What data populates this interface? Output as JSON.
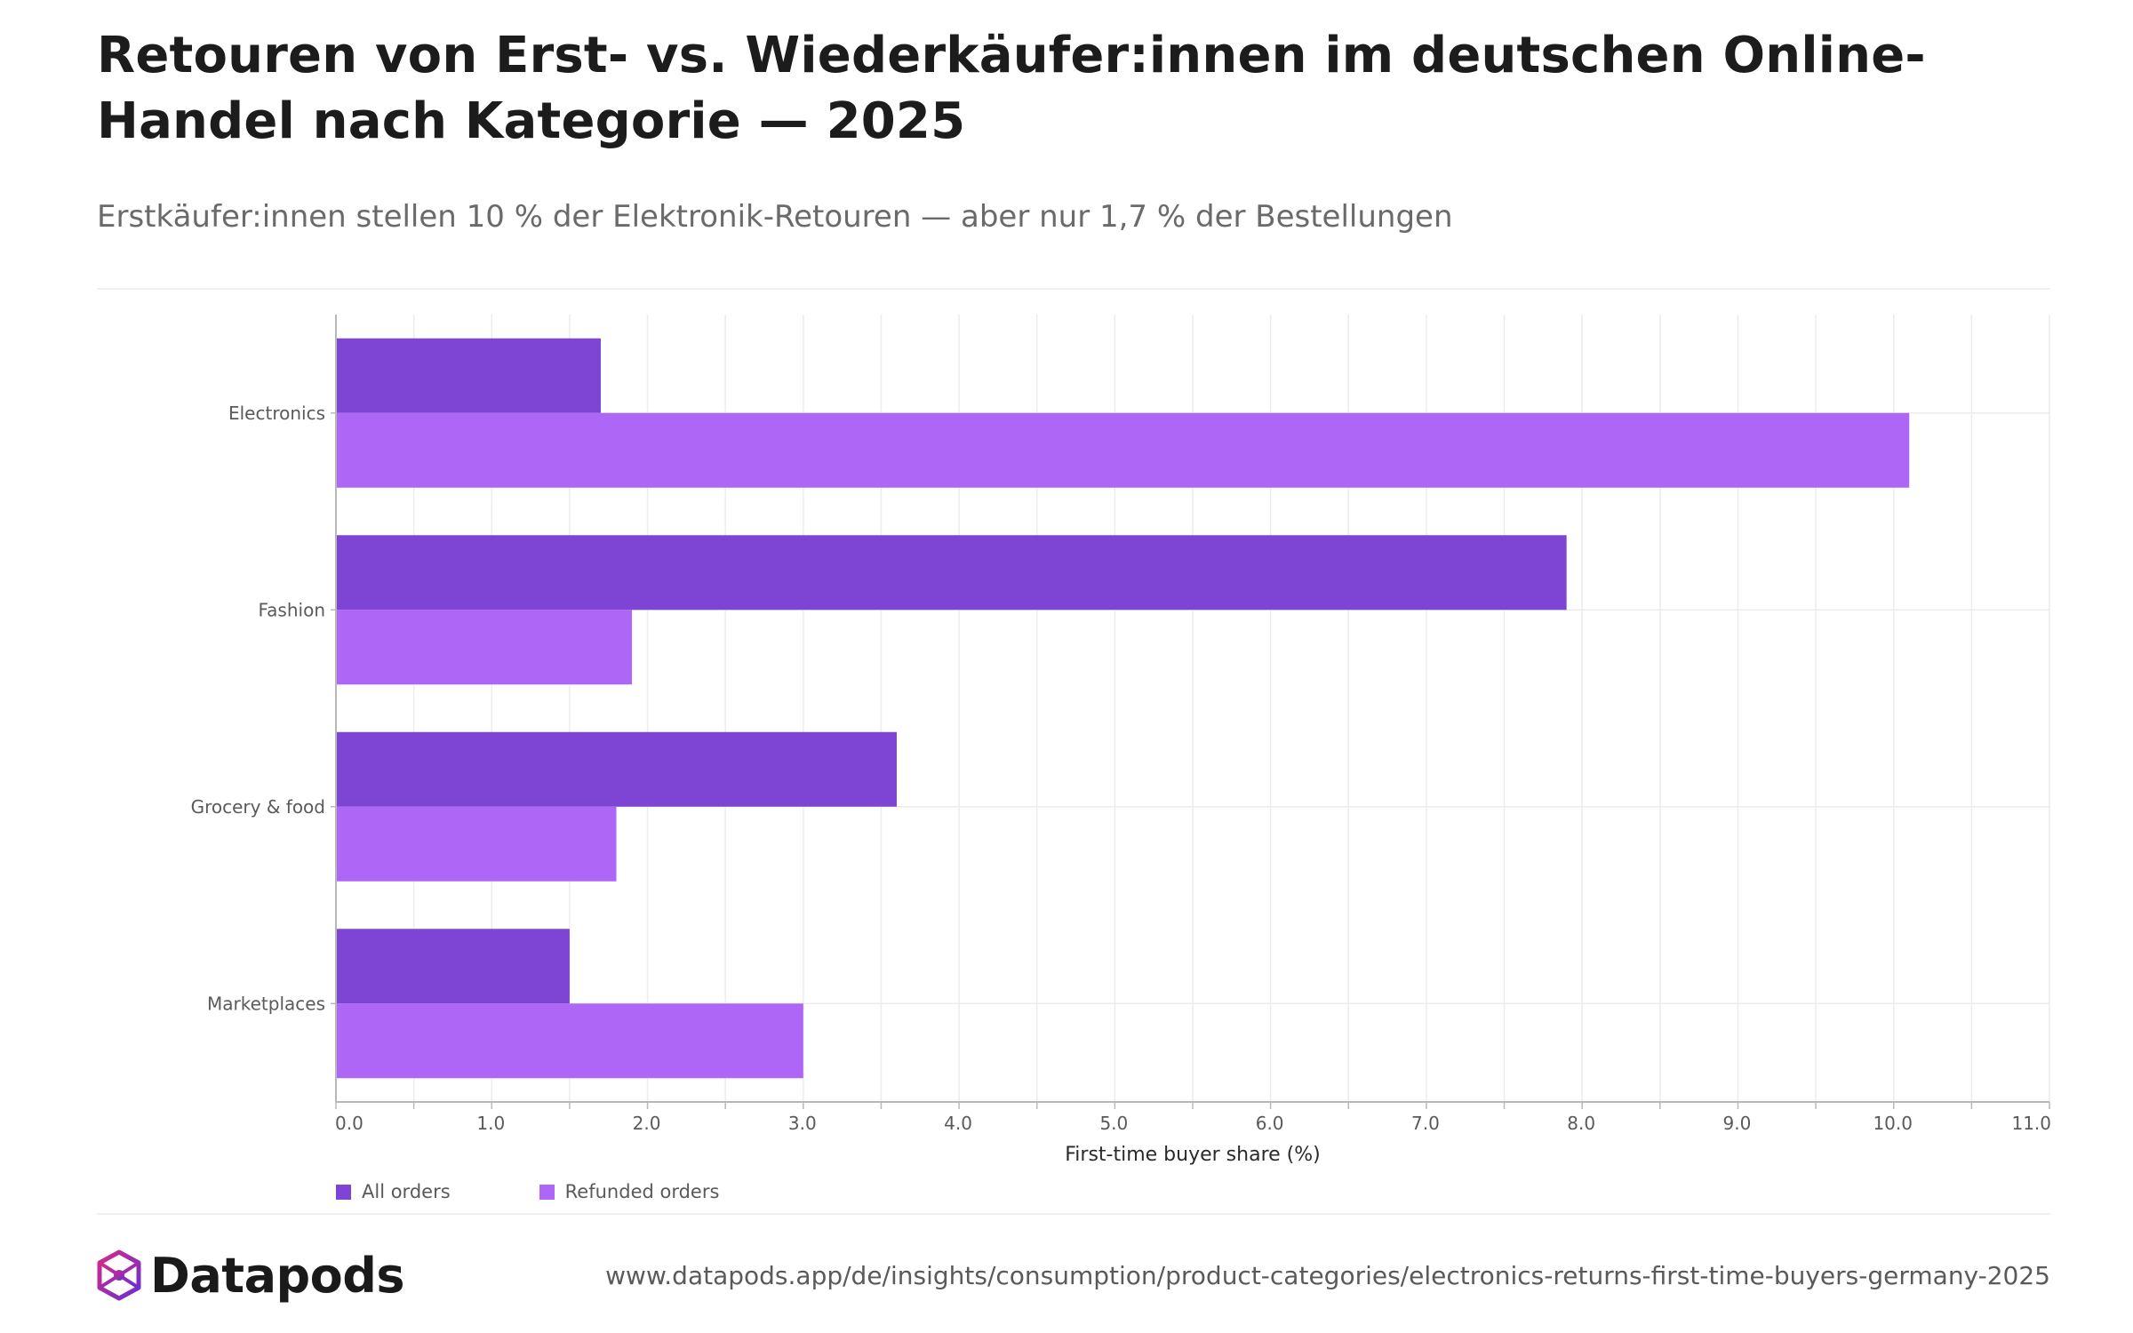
{
  "header": {
    "title": "Retouren von Erst- vs. Wiederkäufer:innen im deutschen Online-Handel nach Kategorie — 2025",
    "subtitle": "Erstkäufer:innen stellen 10 % der Elektronik-Retouren — aber nur 1,7 % der Bestellungen"
  },
  "chart_data": {
    "type": "bar",
    "orientation": "horizontal",
    "categories": [
      "Electronics",
      "Fashion",
      "Grocery & food",
      "Marketplaces"
    ],
    "series": [
      {
        "name": "All orders",
        "values": [
          1.7,
          7.9,
          3.6,
          1.5
        ],
        "color": "#7e44d4"
      },
      {
        "name": "Refunded orders",
        "values": [
          10.1,
          1.9,
          1.8,
          3.0
        ],
        "color": "#ad66f5"
      }
    ],
    "xlabel": "First-time buyer share (%)",
    "ylabel": "",
    "xlim": [
      0,
      11
    ],
    "x_ticks": [
      "0.0",
      "1.0",
      "2.0",
      "3.0",
      "4.0",
      "5.0",
      "6.0",
      "7.0",
      "8.0",
      "9.0",
      "10.0",
      "11.0"
    ],
    "grid": true,
    "legend_position": "bottom-left"
  },
  "footer": {
    "brand": "Datapods",
    "logo_icon": "datapods-logo-icon",
    "url": "www.datapods.app/de/insights/consumption/product-categories/electronics-returns-first-time-buyers-germany-2025"
  }
}
